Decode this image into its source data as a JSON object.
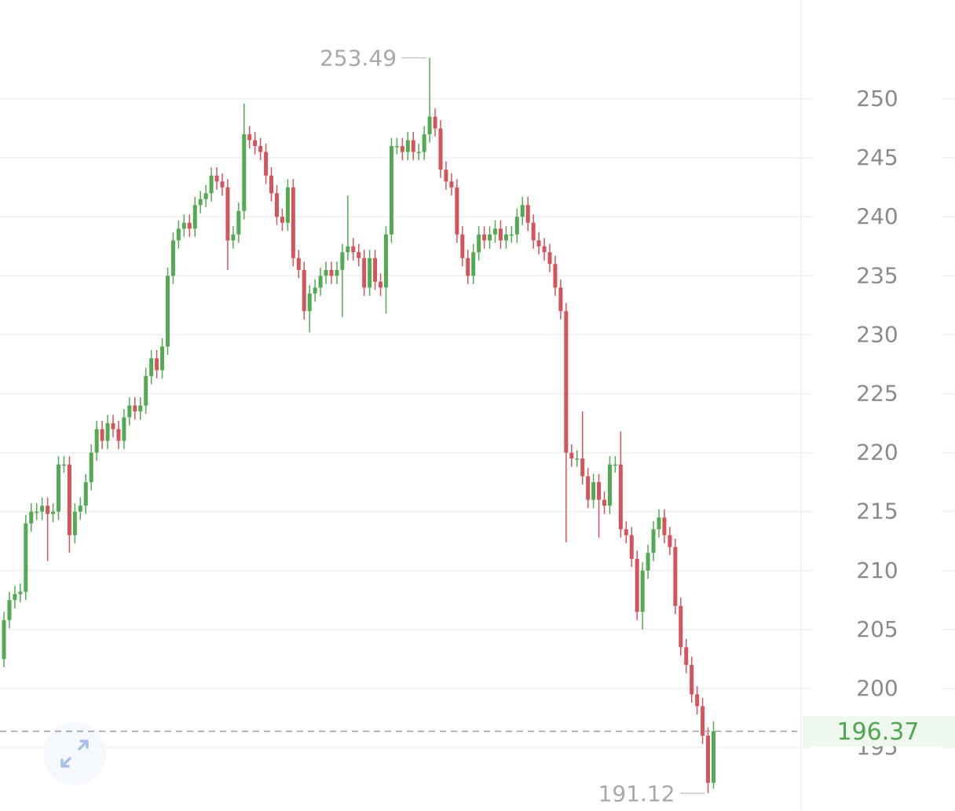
{
  "chart_data": {
    "type": "candlestick",
    "up_color": "#52ab52",
    "down_color": "#d4545c",
    "grid": true,
    "ylim": [
      189.61,
      258.39
    ],
    "yticks": [
      195,
      200,
      205,
      210,
      215,
      220,
      225,
      230,
      235,
      240,
      245,
      250
    ],
    "open": [
      202.5,
      205.8,
      207.5,
      208,
      208.2,
      214,
      215,
      215,
      215.5,
      214.8,
      215,
      219,
      219,
      213,
      215,
      215.5,
      217.5,
      220,
      222,
      221,
      222.5,
      222,
      221,
      223,
      224,
      223.5,
      224,
      226.5,
      228,
      227,
      229,
      235,
      238,
      239,
      239.5,
      239,
      241,
      241.5,
      242,
      243.5,
      243,
      242.5,
      238,
      238.5,
      240.5,
      247,
      246.5,
      246,
      245.5,
      243.5,
      242,
      240,
      239.5,
      242.5,
      236.5,
      235.5,
      232,
      233.5,
      234,
      235,
      235.5,
      235,
      235.5,
      237,
      237.5,
      237,
      236.5,
      234,
      236.5,
      234.5,
      234,
      238.5,
      246,
      246,
      245.5,
      246.5,
      245.5,
      245.5,
      247,
      248.5,
      247.5,
      244,
      243,
      242.5,
      238.5,
      236.5,
      235,
      237,
      238.5,
      238,
      238.5,
      239,
      238,
      238.5,
      238.5,
      240,
      241,
      239.5,
      238,
      237.5,
      237,
      236,
      234,
      232,
      220,
      219.5,
      219.5,
      218,
      216,
      217.5,
      216,
      215.5,
      219,
      219,
      213.5,
      213,
      211,
      206.5,
      210,
      211.5,
      213.5,
      214.5,
      213,
      212,
      207,
      203.5,
      202,
      199.5,
      198.5,
      196,
      192
    ],
    "high": [
      206.5,
      208.2,
      208.7,
      208.9,
      214.7,
      215.7,
      215.7,
      216.2,
      216.2,
      215.7,
      219.7,
      219.7,
      219.7,
      215.7,
      216.2,
      218.2,
      220.7,
      222.7,
      222.7,
      223.2,
      223.2,
      222.7,
      223.7,
      224.7,
      224.7,
      224.7,
      227.2,
      228.7,
      228.7,
      229.7,
      235.7,
      238.7,
      239.7,
      240.2,
      240.2,
      241.7,
      242.2,
      242.7,
      244.2,
      244.2,
      243.7,
      243.2,
      239.2,
      241.2,
      249.6,
      247.7,
      247.2,
      246.7,
      246.2,
      244.2,
      242.7,
      240.7,
      243.2,
      243.2,
      237.2,
      236.2,
      234.2,
      234.7,
      235.7,
      236.2,
      236.2,
      236.2,
      237.7,
      241.8,
      238.2,
      237.7,
      237.2,
      237.2,
      237.2,
      235.2,
      239.2,
      246.7,
      246.7,
      246.7,
      247.2,
      247.2,
      246.2,
      247.7,
      253.49,
      249.2,
      248.2,
      244.7,
      243.7,
      243.2,
      239.2,
      237.2,
      237.7,
      239.2,
      239.2,
      239.2,
      239.7,
      239.7,
      239.2,
      239.2,
      240.7,
      241.7,
      241.7,
      240.2,
      238.7,
      238.2,
      237.7,
      236.7,
      234.7,
      232.7,
      220.7,
      220.2,
      223.5,
      218.7,
      218.2,
      218.2,
      216.7,
      219.7,
      219.7,
      221.8,
      214.2,
      213.7,
      211.7,
      210.7,
      212.2,
      214.2,
      215.2,
      215.2,
      213.7,
      212.7,
      207.7,
      204.2,
      202.7,
      200.2,
      199.2,
      196.7,
      197.2
    ],
    "low": [
      201.8,
      205.1,
      206.8,
      207.3,
      207.5,
      213.3,
      214.3,
      214.3,
      210.8,
      214.1,
      214.3,
      218.3,
      211.5,
      212.3,
      214.3,
      214.8,
      216.8,
      219.3,
      220.3,
      220.3,
      221.3,
      220.3,
      220.3,
      222.3,
      222.8,
      222.8,
      223.3,
      225.8,
      226.3,
      226.3,
      228.3,
      234.3,
      237.3,
      238.3,
      238.3,
      238.3,
      240.3,
      240.8,
      241.3,
      242.3,
      241.8,
      235.5,
      237.3,
      237.8,
      239.8,
      245.8,
      245.3,
      244.8,
      242.8,
      241.3,
      239.3,
      238.8,
      238.8,
      235.8,
      234.8,
      231.3,
      230.2,
      232.8,
      233.3,
      234.3,
      234.3,
      234.3,
      231.5,
      236.3,
      236.3,
      235.8,
      233.3,
      233.3,
      233.8,
      233.3,
      231.8,
      237.8,
      245.3,
      244.8,
      244.8,
      244.8,
      244.8,
      244.8,
      246.3,
      246.8,
      243.3,
      242.3,
      241.8,
      237.8,
      235.8,
      234.3,
      234.3,
      236.3,
      237.3,
      237.3,
      237.8,
      237.3,
      237.3,
      237.8,
      237.8,
      239.3,
      238.8,
      237.3,
      236.8,
      236.3,
      235.3,
      233.3,
      231.3,
      212.4,
      218.8,
      218.8,
      217.3,
      215.3,
      215.3,
      212.8,
      214.8,
      214.8,
      218.3,
      212.8,
      212.3,
      210.3,
      205.8,
      205,
      209.3,
      210.8,
      212.8,
      212.3,
      211.3,
      206.3,
      202.8,
      201.3,
      198.8,
      197.8,
      195.3,
      191.12,
      191.5
    ],
    "close": [
      205.8,
      207.5,
      208,
      208.2,
      214,
      215,
      215,
      215.5,
      214.8,
      215,
      219,
      219,
      213,
      215,
      215.5,
      217.5,
      220,
      222,
      221,
      222.5,
      222,
      221,
      223,
      224,
      223.5,
      224,
      226.5,
      228,
      227,
      229,
      235,
      238,
      239,
      239.5,
      239,
      241,
      241.5,
      242,
      243.5,
      243,
      242.5,
      238,
      238.5,
      240.5,
      247,
      246.5,
      246,
      245.5,
      243.5,
      242,
      240,
      239.5,
      242.5,
      236.5,
      235.5,
      232,
      233.5,
      234,
      235,
      235.5,
      235,
      235.5,
      237,
      237.5,
      237,
      236.5,
      234,
      236.5,
      234.5,
      234,
      238.5,
      246,
      246,
      245.5,
      246.5,
      245.5,
      245.5,
      247,
      248.5,
      247.5,
      244,
      243,
      242.5,
      238.5,
      236.5,
      235,
      237,
      238.5,
      238,
      238.5,
      239,
      238,
      238.5,
      238.5,
      240,
      241,
      239.5,
      238,
      237.5,
      237,
      236,
      234,
      232,
      220,
      219.5,
      219.5,
      218,
      216,
      217.5,
      216,
      215.5,
      219,
      219,
      213.5,
      213,
      211,
      206.5,
      210,
      211.5,
      213.5,
      214.5,
      213,
      212,
      207,
      203.5,
      202,
      199.5,
      198.5,
      196,
      192,
      196.37
    ]
  }
}
